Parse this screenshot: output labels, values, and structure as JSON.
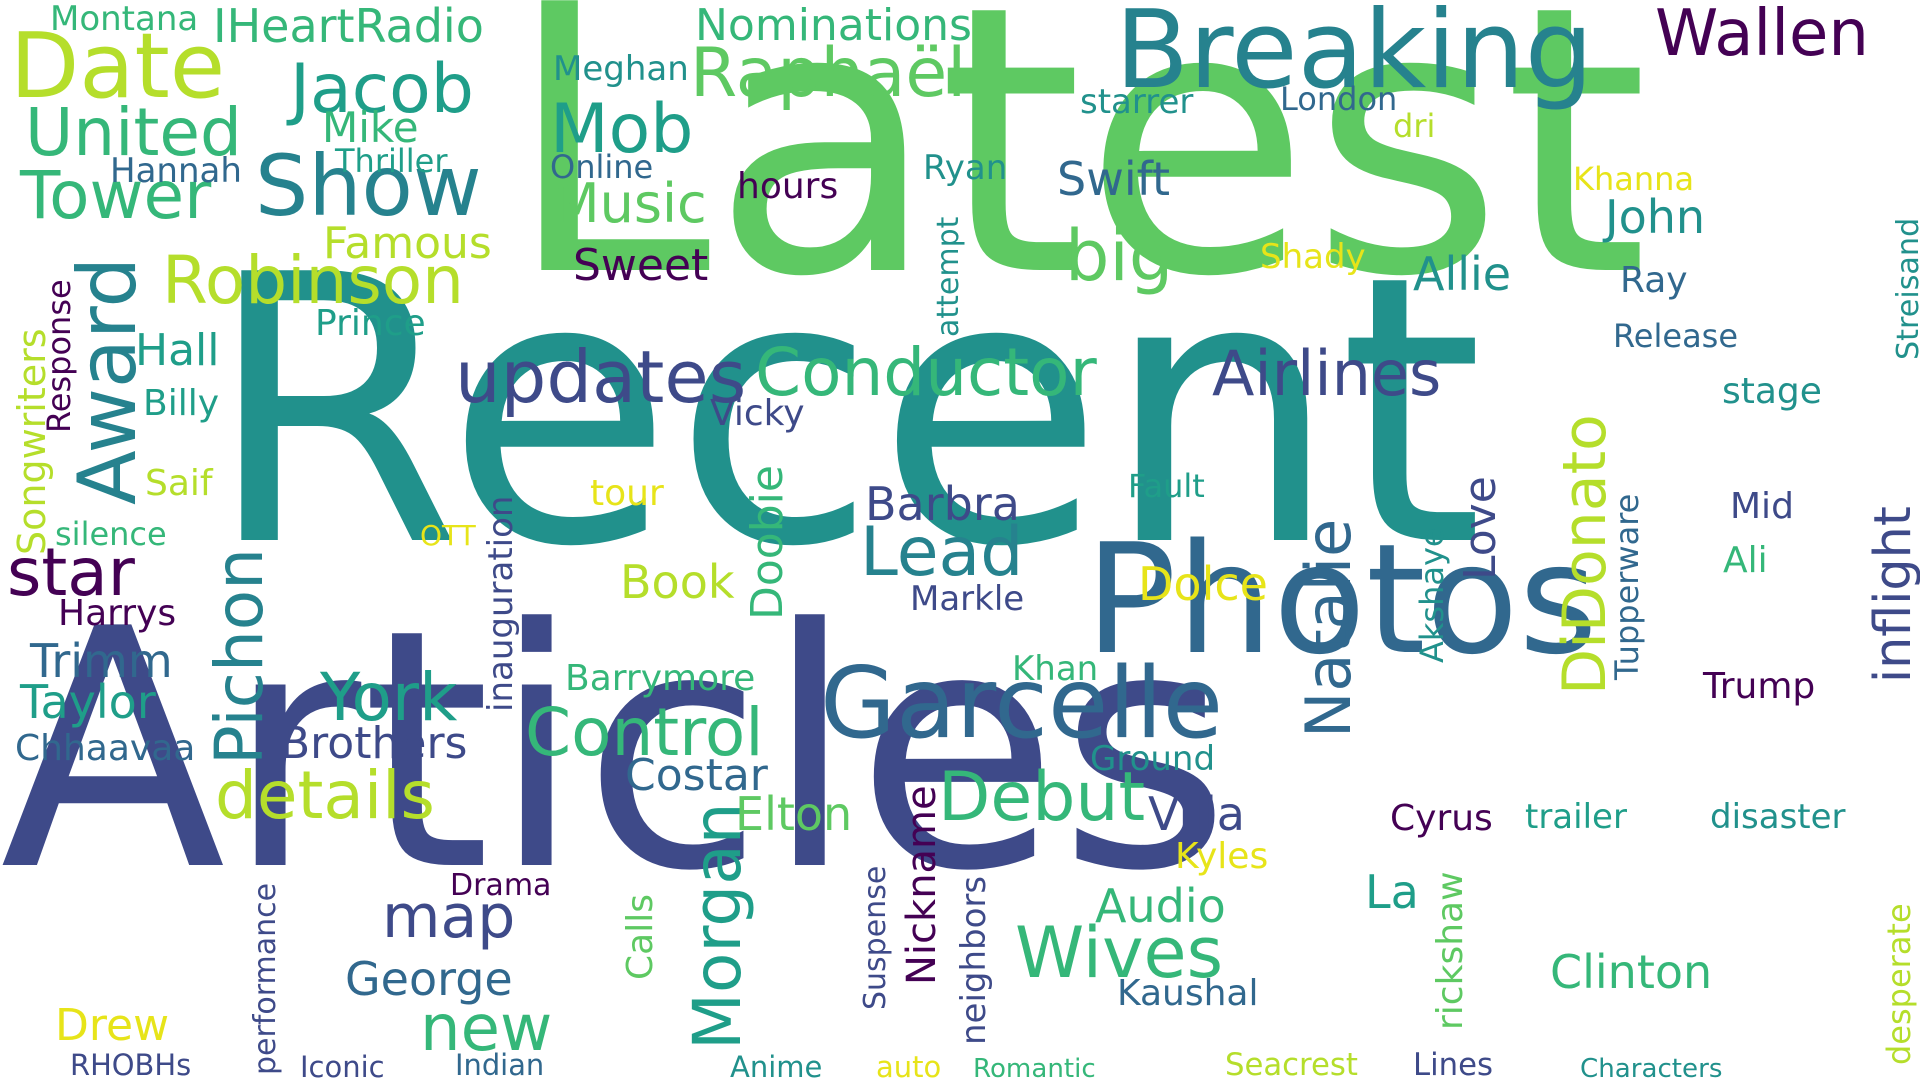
{
  "word_cloud": {
    "background": "#ffffff",
    "palette": {
      "dark_purple": "#440154",
      "indigo": "#3e4a89",
      "blue": "#31688e",
      "teal_blue": "#26828e",
      "teal": "#21918c",
      "teal_green": "#1f9e89",
      "green": "#35b779",
      "light_green": "#5ec962",
      "yellow_green": "#b5de2b",
      "yellow": "#e7e419"
    },
    "words": [
      {
        "text": "Latest",
        "color": "light_green",
        "vertical": false
      },
      {
        "text": "Recent",
        "color": "teal",
        "vertical": false
      },
      {
        "text": "Articles",
        "color": "indigo",
        "vertical": false
      },
      {
        "text": "Photos",
        "color": "blue",
        "vertical": false
      },
      {
        "text": "Breaking",
        "color": "teal_blue",
        "vertical": false
      },
      {
        "text": "Garcelle",
        "color": "blue",
        "vertical": false
      },
      {
        "text": "Date",
        "color": "yellow_green",
        "vertical": false
      },
      {
        "text": "Wallen",
        "color": "dark_purple",
        "vertical": false
      },
      {
        "text": "Jacob",
        "color": "teal_green",
        "vertical": false
      },
      {
        "text": "Raphaël",
        "color": "light_green",
        "vertical": false
      },
      {
        "text": "Mob",
        "color": "teal_green",
        "vertical": false
      },
      {
        "text": "United",
        "color": "green",
        "vertical": false
      },
      {
        "text": "Show",
        "color": "teal_blue",
        "vertical": false
      },
      {
        "text": "Tower",
        "color": "green",
        "vertical": false
      },
      {
        "text": "Robinson",
        "color": "yellow_green",
        "vertical": false
      },
      {
        "text": "Award",
        "color": "teal_blue",
        "vertical": true
      },
      {
        "text": "updates",
        "color": "indigo",
        "vertical": false
      },
      {
        "text": "Conductor",
        "color": "green",
        "vertical": false
      },
      {
        "text": "Airlines",
        "color": "indigo",
        "vertical": false
      },
      {
        "text": "Pichon",
        "color": "teal_blue",
        "vertical": true
      },
      {
        "text": "star",
        "color": "dark_purple",
        "vertical": false
      },
      {
        "text": "Lead",
        "color": "teal_blue",
        "vertical": false
      },
      {
        "text": "York",
        "color": "teal_green",
        "vertical": false
      },
      {
        "text": "Control",
        "color": "green",
        "vertical": false
      },
      {
        "text": "details",
        "color": "yellow_green",
        "vertical": false
      },
      {
        "text": "Debut",
        "color": "green",
        "vertical": false
      },
      {
        "text": "Morgan",
        "color": "teal_green",
        "vertical": true
      },
      {
        "text": "map",
        "color": "indigo",
        "vertical": false
      },
      {
        "text": "Wives",
        "color": "green",
        "vertical": false
      },
      {
        "text": "new",
        "color": "green",
        "vertical": false
      },
      {
        "text": "Natalie",
        "color": "blue",
        "vertical": true
      },
      {
        "text": "DiDonato",
        "color": "yellow_green",
        "vertical": true
      },
      {
        "text": "inflight",
        "color": "indigo",
        "vertical": true
      },
      {
        "text": "big",
        "color": "light_green",
        "vertical": false
      },
      {
        "text": "Music",
        "color": "light_green",
        "vertical": false
      },
      {
        "text": "Swift",
        "color": "blue",
        "vertical": false
      },
      {
        "text": "John",
        "color": "teal",
        "vertical": false
      },
      {
        "text": "Allie",
        "color": "teal",
        "vertical": false
      },
      {
        "text": "Nominations",
        "color": "green",
        "vertical": false
      },
      {
        "text": "IHeartRadio",
        "color": "green",
        "vertical": false
      },
      {
        "text": "Montana",
        "color": "green",
        "vertical": false
      },
      {
        "text": "Meghan",
        "color": "teal",
        "vertical": false
      },
      {
        "text": "starrer",
        "color": "teal",
        "vertical": false
      },
      {
        "text": "London",
        "color": "blue",
        "vertical": false
      },
      {
        "text": "Streisand",
        "color": "teal",
        "vertical": true
      },
      {
        "text": "Mike",
        "color": "green",
        "vertical": false
      },
      {
        "text": "Thriller",
        "color": "teal_green",
        "vertical": false
      },
      {
        "text": "Hannah",
        "color": "blue",
        "vertical": false
      },
      {
        "text": "Online",
        "color": "blue",
        "vertical": false
      },
      {
        "text": "Ryan",
        "color": "teal",
        "vertical": false
      },
      {
        "text": "dri",
        "color": "yellow_green",
        "vertical": false
      },
      {
        "text": "Khanna",
        "color": "yellow",
        "vertical": false
      },
      {
        "text": "hours",
        "color": "dark_purple",
        "vertical": false
      },
      {
        "text": "Famous",
        "color": "yellow_green",
        "vertical": false
      },
      {
        "text": "Sweet",
        "color": "dark_purple",
        "vertical": false
      },
      {
        "text": "attempt",
        "color": "teal",
        "vertical": true
      },
      {
        "text": "Shady",
        "color": "yellow",
        "vertical": false
      },
      {
        "text": "Ray",
        "color": "blue",
        "vertical": false
      },
      {
        "text": "Release",
        "color": "blue",
        "vertical": false
      },
      {
        "text": "Response",
        "color": "dark_purple",
        "vertical": true
      },
      {
        "text": "Songwriters",
        "color": "yellow_green",
        "vertical": true
      },
      {
        "text": "Prince",
        "color": "teal_green",
        "vertical": false
      },
      {
        "text": "Hall",
        "color": "teal_green",
        "vertical": false
      },
      {
        "text": "Billy",
        "color": "teal_green",
        "vertical": false
      },
      {
        "text": "stage",
        "color": "teal",
        "vertical": false
      },
      {
        "text": "Vicky",
        "color": "indigo",
        "vertical": false
      },
      {
        "text": "Saif",
        "color": "yellow_green",
        "vertical": false
      },
      {
        "text": "silence",
        "color": "green",
        "vertical": false
      },
      {
        "text": "OTT",
        "color": "yellow",
        "vertical": false
      },
      {
        "text": "inauguration",
        "color": "indigo",
        "vertical": true
      },
      {
        "text": "tour",
        "color": "yellow",
        "vertical": false
      },
      {
        "text": "Doobie",
        "color": "green",
        "vertical": true
      },
      {
        "text": "Barbra",
        "color": "indigo",
        "vertical": false
      },
      {
        "text": "Fault",
        "color": "teal_green",
        "vertical": false
      },
      {
        "text": "Love",
        "color": "indigo",
        "vertical": true
      },
      {
        "text": "Tupperware",
        "color": "blue",
        "vertical": true
      },
      {
        "text": "Mid",
        "color": "indigo",
        "vertical": false
      },
      {
        "text": "Ali",
        "color": "green",
        "vertical": false
      },
      {
        "text": "Akshaye",
        "color": "teal",
        "vertical": true
      },
      {
        "text": "Harrys",
        "color": "dark_purple",
        "vertical": false
      },
      {
        "text": "Book",
        "color": "yellow_green",
        "vertical": false
      },
      {
        "text": "Dolce",
        "color": "yellow",
        "vertical": false
      },
      {
        "text": "Markle",
        "color": "indigo",
        "vertical": false
      },
      {
        "text": "Trimm",
        "color": "blue",
        "vertical": false
      },
      {
        "text": "Barrymore",
        "color": "green",
        "vertical": false
      },
      {
        "text": "Khan",
        "color": "green",
        "vertical": false
      },
      {
        "text": "Trump",
        "color": "dark_purple",
        "vertical": false
      },
      {
        "text": "Taylor",
        "color": "teal_green",
        "vertical": false
      },
      {
        "text": "Brothers",
        "color": "indigo",
        "vertical": false
      },
      {
        "text": "Chhaavaa",
        "color": "blue",
        "vertical": false
      },
      {
        "text": "Ground",
        "color": "teal",
        "vertical": false
      },
      {
        "text": "Costar",
        "color": "blue",
        "vertical": false
      },
      {
        "text": "Elton",
        "color": "light_green",
        "vertical": false
      },
      {
        "text": "Nickname",
        "color": "dark_purple",
        "vertical": true
      },
      {
        "text": "Villa",
        "color": "indigo",
        "vertical": false
      },
      {
        "text": "Cyrus",
        "color": "dark_purple",
        "vertical": false
      },
      {
        "text": "trailer",
        "color": "teal_green",
        "vertical": false
      },
      {
        "text": "disaster",
        "color": "teal",
        "vertical": false
      },
      {
        "text": "Kyles",
        "color": "yellow",
        "vertical": false
      },
      {
        "text": "performance",
        "color": "indigo",
        "vertical": true
      },
      {
        "text": "Drama",
        "color": "dark_purple",
        "vertical": false
      },
      {
        "text": "neighbors",
        "color": "indigo",
        "vertical": true
      },
      {
        "text": "Audio",
        "color": "green",
        "vertical": false
      },
      {
        "text": "La",
        "color": "teal_green",
        "vertical": false
      },
      {
        "text": "rickshaw",
        "color": "light_green",
        "vertical": true
      },
      {
        "text": "Suspense",
        "color": "indigo",
        "vertical": true
      },
      {
        "text": "Calls",
        "color": "light_green",
        "vertical": true
      },
      {
        "text": "desperate",
        "color": "yellow_green",
        "vertical": true
      },
      {
        "text": "George",
        "color": "blue",
        "vertical": false
      },
      {
        "text": "Clinton",
        "color": "green",
        "vertical": false
      },
      {
        "text": "Kaushal",
        "color": "blue",
        "vertical": false
      },
      {
        "text": "Drew",
        "color": "yellow",
        "vertical": false
      },
      {
        "text": "RHOBHs",
        "color": "indigo",
        "vertical": false
      },
      {
        "text": "Iconic",
        "color": "indigo",
        "vertical": false
      },
      {
        "text": "Indian",
        "color": "blue",
        "vertical": false
      },
      {
        "text": "Anime",
        "color": "teal",
        "vertical": false
      },
      {
        "text": "auto",
        "color": "yellow",
        "vertical": false
      },
      {
        "text": "Romantic",
        "color": "green",
        "vertical": false
      },
      {
        "text": "Seacrest",
        "color": "yellow_green",
        "vertical": false
      },
      {
        "text": "Lines",
        "color": "indigo",
        "vertical": false
      },
      {
        "text": "Characters",
        "color": "teal",
        "vertical": false
      }
    ]
  }
}
